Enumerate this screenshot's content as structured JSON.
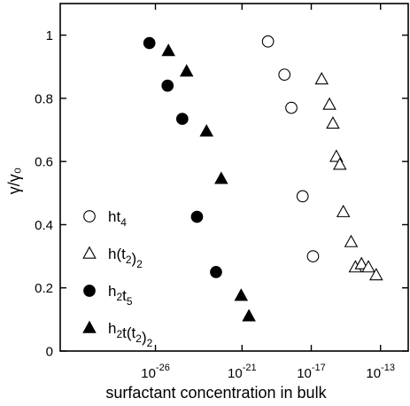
{
  "chart_data": {
    "type": "scatter",
    "xlabel": "surfactant concentration in bulk",
    "ylabel": "γ/γ₀",
    "x_scale": "log10",
    "xlim": [
      -31.5,
      -11.4
    ],
    "ylim": [
      0,
      1.1
    ],
    "x_ticks": [
      {
        "exp": -26,
        "label": "10",
        "sup": "-26"
      },
      {
        "exp": -21,
        "label": "10",
        "sup": "-21"
      },
      {
        "exp": -17,
        "label": "10",
        "sup": "-17"
      },
      {
        "exp": -13,
        "label": "10",
        "sup": "-13"
      }
    ],
    "y_ticks": [
      {
        "value": 0,
        "label": "0"
      },
      {
        "value": 0.2,
        "label": "0.2"
      },
      {
        "value": 0.4,
        "label": "0.4"
      },
      {
        "value": 0.6,
        "label": "0.6"
      },
      {
        "value": 0.8,
        "label": "0.8"
      },
      {
        "value": 1,
        "label": "1"
      }
    ],
    "grid": false,
    "legend_position": "bottom-left",
    "series": [
      {
        "name": "ht4",
        "legend_parts": [
          {
            "t": "ht",
            "sub": ""
          },
          {
            "t": "4",
            "sub": "sub"
          }
        ],
        "marker": "circle-open",
        "points": [
          [
            -19.5,
            0.98
          ],
          [
            -18.55,
            0.875
          ],
          [
            -18.15,
            0.77
          ],
          [
            -17.5,
            0.49
          ],
          [
            -16.9,
            0.3
          ]
        ]
      },
      {
        "name": "h(t2)2",
        "legend_parts": [
          {
            "t": "h(t",
            "sub": ""
          },
          {
            "t": "2",
            "sub": "sub"
          },
          {
            "t": ")",
            "sub": ""
          },
          {
            "t": "2",
            "sub": "sub"
          }
        ],
        "marker": "triangle-open",
        "points": [
          [
            -16.4,
            0.86
          ],
          [
            -15.95,
            0.78
          ],
          [
            -15.75,
            0.72
          ],
          [
            -15.55,
            0.615
          ],
          [
            -15.35,
            0.59
          ],
          [
            -15.15,
            0.44
          ],
          [
            -14.7,
            0.345
          ],
          [
            -14.45,
            0.265
          ],
          [
            -14.1,
            0.275
          ],
          [
            -13.7,
            0.265
          ],
          [
            -13.25,
            0.24
          ]
        ]
      },
      {
        "name": "h2t5",
        "legend_parts": [
          {
            "t": "h",
            "sub": ""
          },
          {
            "t": "2",
            "sub": "sub"
          },
          {
            "t": "t",
            "sub": ""
          },
          {
            "t": "5",
            "sub": "sub"
          }
        ],
        "marker": "circle-filled",
        "points": [
          [
            -26.35,
            0.975
          ],
          [
            -25.3,
            0.84
          ],
          [
            -24.45,
            0.735
          ],
          [
            -23.6,
            0.425
          ],
          [
            -22.5,
            0.25
          ]
        ]
      },
      {
        "name": "h2t(t2)2",
        "legend_parts": [
          {
            "t": "h",
            "sub": ""
          },
          {
            "t": "2",
            "sub": "sub"
          },
          {
            "t": "t(t",
            "sub": ""
          },
          {
            "t": "2",
            "sub": "sub"
          },
          {
            "t": ")",
            "sub": ""
          },
          {
            "t": "2",
            "sub": "sub"
          }
        ],
        "marker": "triangle-filled",
        "points": [
          [
            -25.25,
            0.95
          ],
          [
            -24.2,
            0.885
          ],
          [
            -23.05,
            0.695
          ],
          [
            -22.2,
            0.545
          ],
          [
            -21.05,
            0.175
          ],
          [
            -20.6,
            0.11
          ]
        ]
      }
    ]
  }
}
